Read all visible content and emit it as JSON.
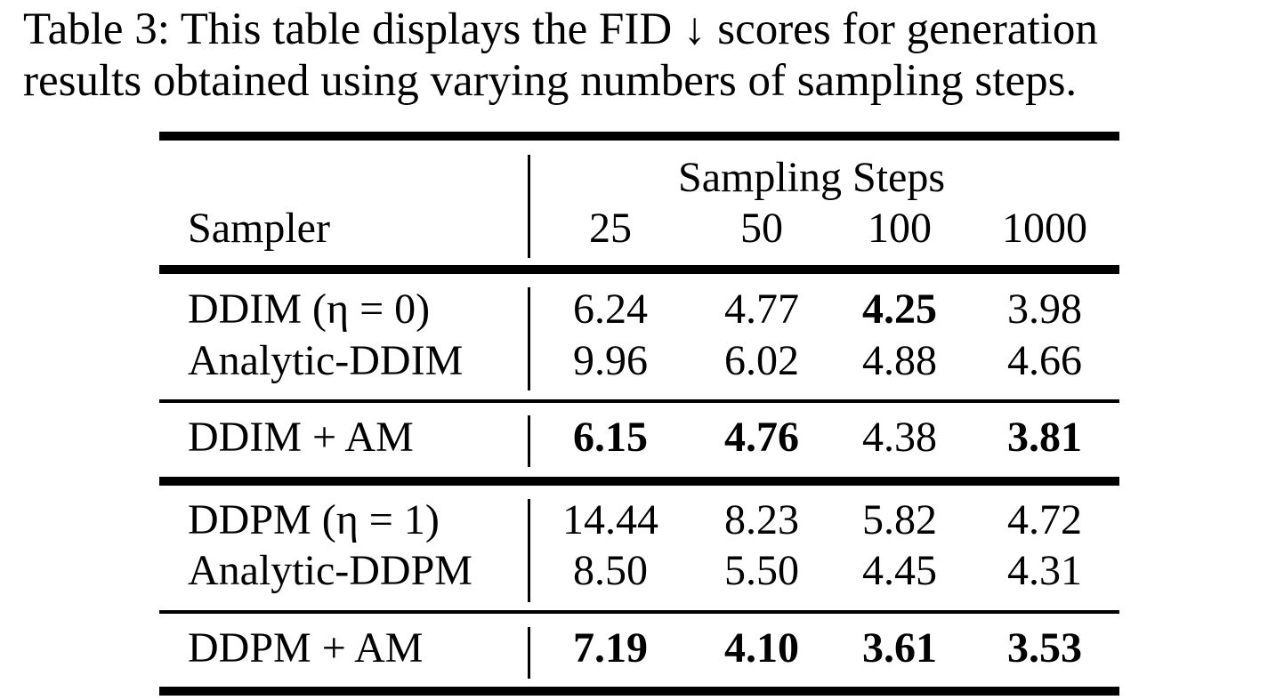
{
  "caption": {
    "line1": "Table 3: This table displays the FID ↓ scores for generation",
    "line2": "results obtained using varying numbers of sampling steps."
  },
  "table": {
    "group_header": "Sampling Steps",
    "sampler_header": "Sampler",
    "columns": [
      "25",
      "50",
      "100",
      "1000"
    ],
    "rows": [
      {
        "label": "DDIM (η = 0)",
        "values": [
          "6.24",
          "4.77",
          "4.25",
          "3.98"
        ],
        "bold": [
          false,
          false,
          true,
          false
        ]
      },
      {
        "label": "Analytic-DDIM",
        "values": [
          "9.96",
          "6.02",
          "4.88",
          "4.66"
        ],
        "bold": [
          false,
          false,
          false,
          false
        ]
      },
      {
        "label": "DDIM + AM",
        "values": [
          "6.15",
          "4.76",
          "4.38",
          "3.81"
        ],
        "bold": [
          true,
          true,
          false,
          true
        ]
      },
      {
        "label": "DDPM (η = 1)",
        "values": [
          "14.44",
          "8.23",
          "5.82",
          "4.72"
        ],
        "bold": [
          false,
          false,
          false,
          false
        ]
      },
      {
        "label": "Analytic-DDPM",
        "values": [
          "8.50",
          "5.50",
          "4.45",
          "4.31"
        ],
        "bold": [
          false,
          false,
          false,
          false
        ]
      },
      {
        "label": "DDPM + AM",
        "values": [
          "7.19",
          "4.10",
          "3.61",
          "3.53"
        ],
        "bold": [
          true,
          true,
          true,
          true
        ]
      }
    ]
  }
}
